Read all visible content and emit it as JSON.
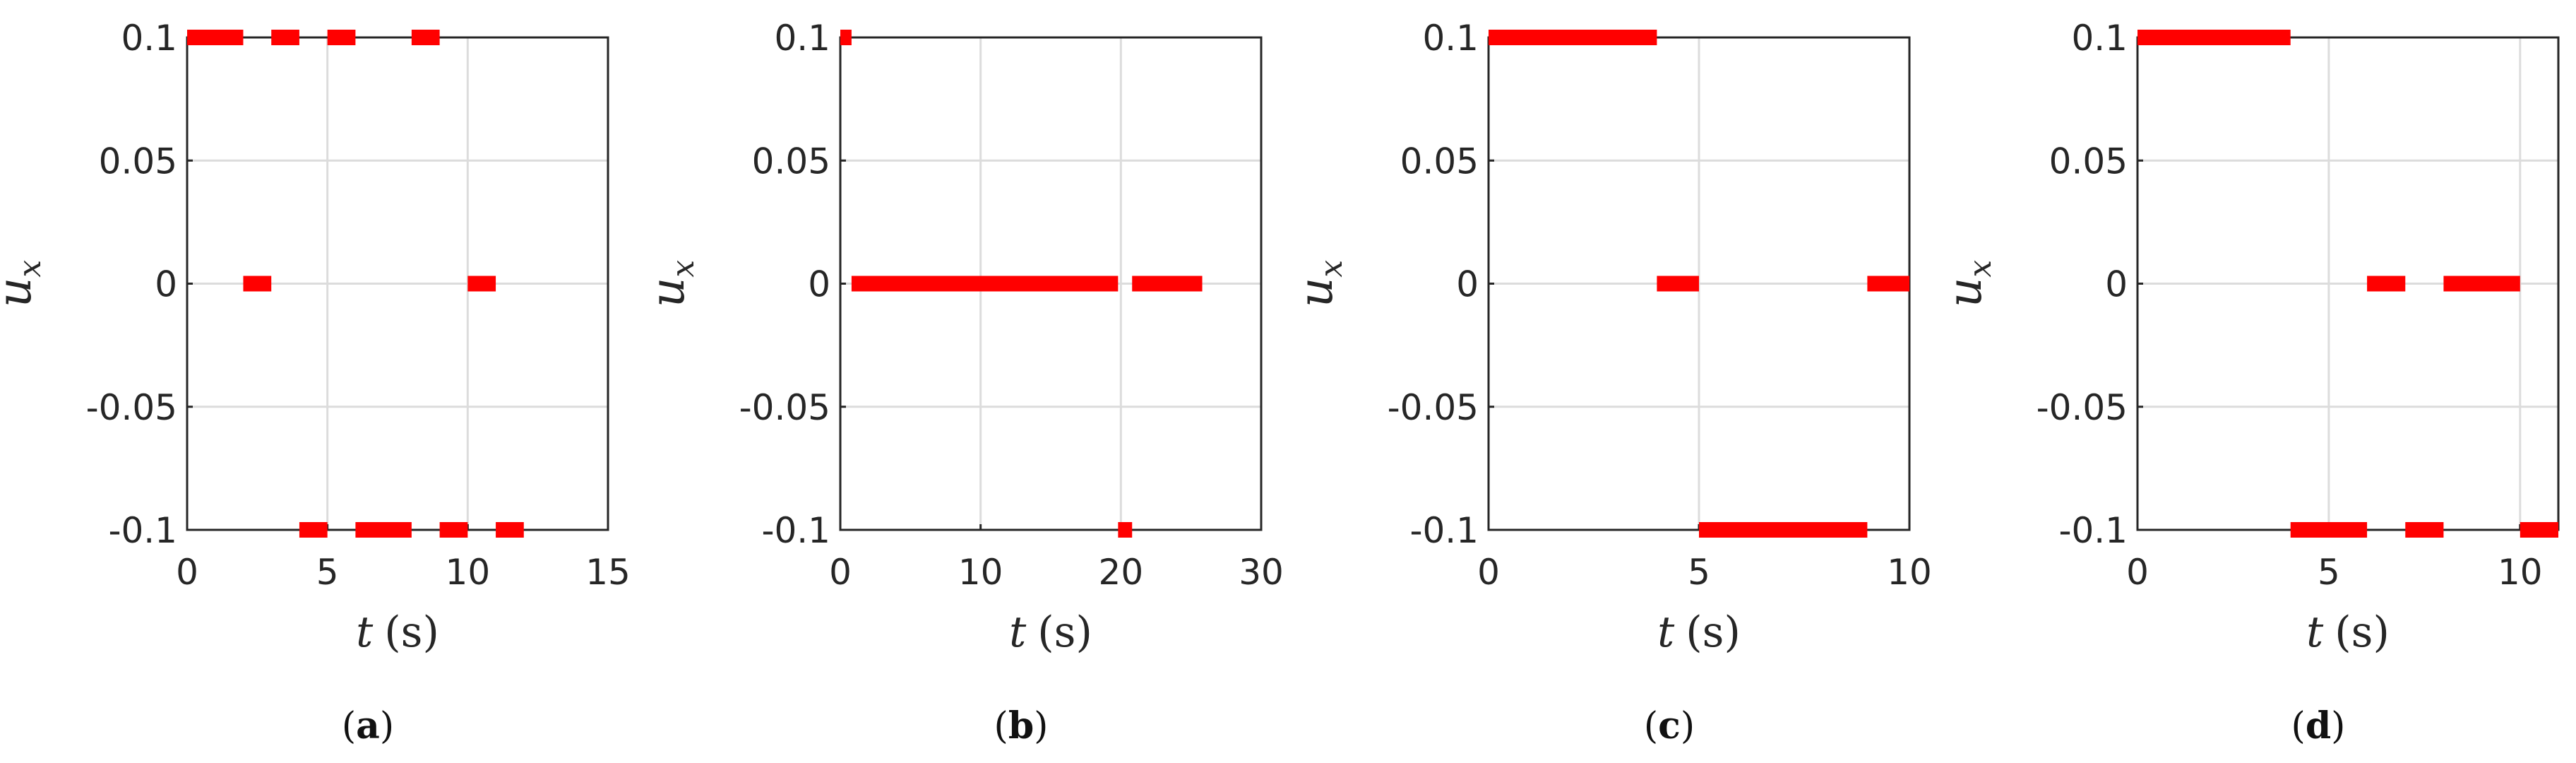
{
  "chart_data": [
    {
      "type": "line",
      "panel": "(a)",
      "panel_letter": "a",
      "xlabel_var": "t",
      "xlabel_unit": "(s)",
      "ylabel": "u",
      "ylabel_sub": "x",
      "xlim": [
        0,
        15
      ],
      "ylim": [
        -0.1,
        0.1
      ],
      "xticks": [
        0,
        5,
        10,
        15
      ],
      "xtick_labels": [
        "0",
        "5",
        "10",
        "15"
      ],
      "yticks": [
        -0.1,
        -0.05,
        0,
        0.05,
        0.1
      ],
      "ytick_labels": [
        "-0.1",
        "-0.05",
        "0",
        "0.05",
        "0.1"
      ],
      "grid": true,
      "color": "#ff0000",
      "series": [
        {
          "segments": [
            {
              "x0": 0.0,
              "x1": 2.0,
              "y": 0.1
            },
            {
              "x0": 2.0,
              "x1": 3.0,
              "y": 0
            },
            {
              "x0": 3.0,
              "x1": 4.0,
              "y": 0.1
            },
            {
              "x0": 4.0,
              "x1": 5.0,
              "y": -0.1
            },
            {
              "x0": 5.0,
              "x1": 6.0,
              "y": 0.1
            },
            {
              "x0": 6.0,
              "x1": 8.0,
              "y": -0.1
            },
            {
              "x0": 8.0,
              "x1": 9.0,
              "y": 0.1
            },
            {
              "x0": 9.0,
              "x1": 10.0,
              "y": -0.1
            },
            {
              "x0": 10.0,
              "x1": 11.0,
              "y": 0
            },
            {
              "x0": 11.0,
              "x1": 12.0,
              "y": -0.1
            }
          ]
        }
      ]
    },
    {
      "type": "line",
      "panel": "(b)",
      "panel_letter": "b",
      "xlabel_var": "t",
      "xlabel_unit": "(s)",
      "ylabel": "u",
      "ylabel_sub": "x",
      "xlim": [
        0,
        30
      ],
      "ylim": [
        -0.1,
        0.1
      ],
      "xticks": [
        0,
        10,
        20,
        30
      ],
      "xtick_labels": [
        "0",
        "10",
        "20",
        "30"
      ],
      "yticks": [
        -0.1,
        -0.05,
        0,
        0.05,
        0.1
      ],
      "ytick_labels": [
        "-0.1",
        "-0.05",
        "0",
        "0.05",
        "0.1"
      ],
      "grid": true,
      "color": "#ff0000",
      "series": [
        {
          "segments": [
            {
              "x0": 0.0,
              "x1": 0.8,
              "y": 0.1
            },
            {
              "x0": 0.8,
              "x1": 19.8,
              "y": 0
            },
            {
              "x0": 19.8,
              "x1": 20.8,
              "y": -0.1
            },
            {
              "x0": 20.8,
              "x1": 25.8,
              "y": 0
            }
          ]
        }
      ]
    },
    {
      "type": "line",
      "panel": "(c)",
      "panel_letter": "c",
      "xlabel_var": "t",
      "xlabel_unit": "(s)",
      "ylabel": "u",
      "ylabel_sub": "x",
      "xlim": [
        0,
        10
      ],
      "ylim": [
        -0.1,
        0.1
      ],
      "xticks": [
        0,
        5,
        10
      ],
      "xtick_labels": [
        "0",
        "5",
        "10"
      ],
      "yticks": [
        -0.1,
        -0.05,
        0,
        0.05,
        0.1
      ],
      "ytick_labels": [
        "-0.1",
        "-0.05",
        "0",
        "0.05",
        "0.1"
      ],
      "grid": true,
      "color": "#ff0000",
      "series": [
        {
          "segments": [
            {
              "x0": 0.0,
              "x1": 4.0,
              "y": 0.1
            },
            {
              "x0": 4.0,
              "x1": 5.0,
              "y": 0
            },
            {
              "x0": 5.0,
              "x1": 9.0,
              "y": -0.1
            },
            {
              "x0": 9.0,
              "x1": 10.0,
              "y": 0
            }
          ]
        }
      ]
    },
    {
      "type": "line",
      "panel": "(d)",
      "panel_letter": "d",
      "xlabel_var": "t",
      "xlabel_unit": "(s)",
      "ylabel": "u",
      "ylabel_sub": "x",
      "xlim": [
        0,
        11
      ],
      "ylim": [
        -0.1,
        0.1
      ],
      "xticks": [
        0,
        5,
        10
      ],
      "xtick_labels": [
        "0",
        "5",
        "10"
      ],
      "yticks": [
        -0.1,
        -0.05,
        0,
        0.05,
        0.1
      ],
      "ytick_labels": [
        "-0.1",
        "-0.05",
        "0",
        "0.05",
        "0.1"
      ],
      "grid": true,
      "color": "#ff0000",
      "series": [
        {
          "segments": [
            {
              "x0": 0.0,
              "x1": 4.0,
              "y": 0.1
            },
            {
              "x0": 4.0,
              "x1": 6.0,
              "y": -0.1
            },
            {
              "x0": 6.0,
              "x1": 7.0,
              "y": 0
            },
            {
              "x0": 7.0,
              "x1": 8.0,
              "y": -0.1
            },
            {
              "x0": 8.0,
              "x1": 10.0,
              "y": 0
            },
            {
              "x0": 10.0,
              "x1": 11.0,
              "y": -0.1
            }
          ]
        }
      ]
    }
  ]
}
